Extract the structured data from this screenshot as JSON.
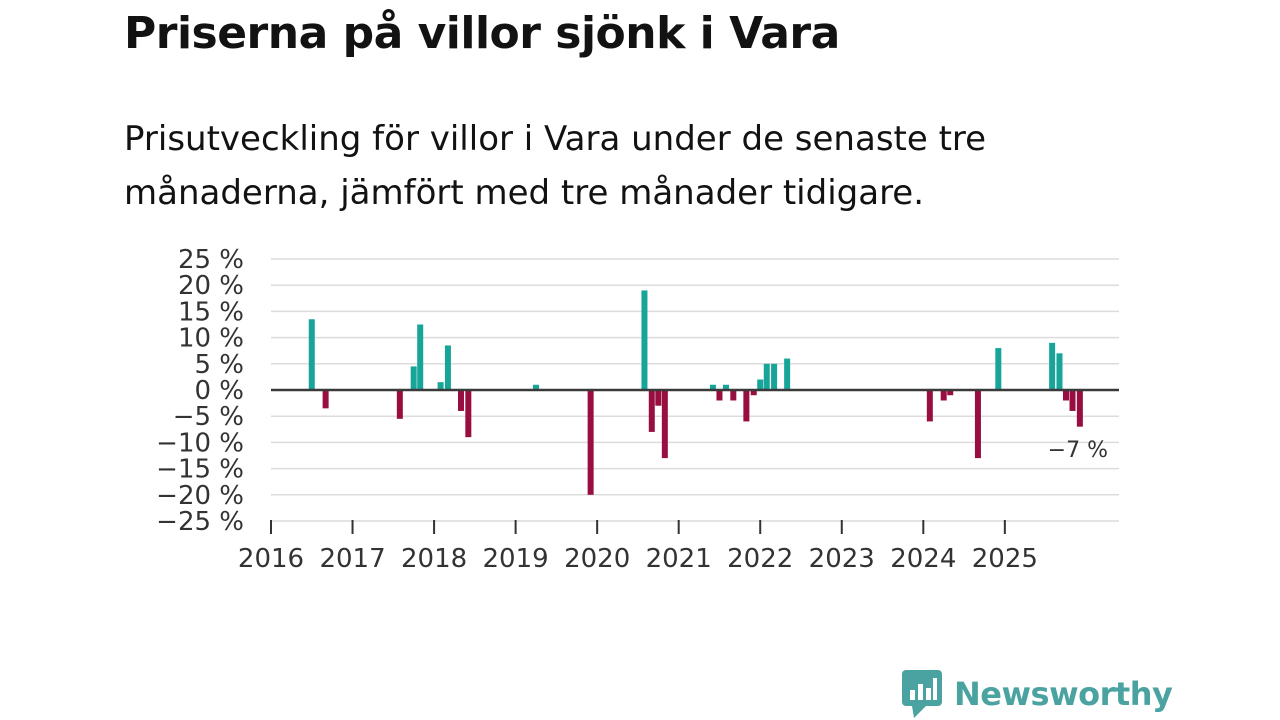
{
  "title": "Priserna på villor sjönk i Vara",
  "subtitle": "Prisutveckling för villor i Vara under de senaste tre månaderna, jämfört med tre månader tidigare.",
  "brand": {
    "name": "Newsworthy"
  },
  "colors": {
    "positive": "#16a598",
    "negative": "#980e40",
    "grid": "#dcdcdc",
    "brand": "#4aa3a0"
  },
  "chart_data": {
    "type": "bar",
    "title": "Priserna på villor sjönk i Vara",
    "xlabel": "",
    "ylabel": "",
    "ylim": [
      -25,
      25
    ],
    "y_ticks": [
      25,
      20,
      15,
      10,
      5,
      0,
      -5,
      -10,
      -15,
      -20,
      -25
    ],
    "y_tick_labels": [
      "25 %",
      "20 %",
      "15 %",
      "10 %",
      "5 %",
      "0 %",
      "−5 %",
      "−10 %",
      "−15 %",
      "−20 %",
      "−25 %"
    ],
    "x_range": [
      2016.0,
      2026.4
    ],
    "x_ticks": [
      2016,
      2017,
      2018,
      2019,
      2020,
      2021,
      2022,
      2023,
      2024,
      2025
    ],
    "x_tick_labels": [
      "2016",
      "2017",
      "2018",
      "2019",
      "2020",
      "2021",
      "2022",
      "2023",
      "2024",
      "2025"
    ],
    "annotation": {
      "text": "−7 %",
      "x": 2025.92,
      "value": -7
    },
    "series": [
      {
        "name": "Prisutveckling",
        "points": [
          {
            "x": 2016.5,
            "value": 13.5
          },
          {
            "x": 2016.67,
            "value": -3.5
          },
          {
            "x": 2017.58,
            "value": -5.5
          },
          {
            "x": 2017.75,
            "value": 4.5
          },
          {
            "x": 2017.83,
            "value": 12.5
          },
          {
            "x": 2018.08,
            "value": 1.5
          },
          {
            "x": 2018.17,
            "value": 8.5
          },
          {
            "x": 2018.33,
            "value": -4
          },
          {
            "x": 2018.42,
            "value": -9
          },
          {
            "x": 2019.25,
            "value": 1
          },
          {
            "x": 2019.92,
            "value": -20
          },
          {
            "x": 2020.58,
            "value": 19
          },
          {
            "x": 2020.67,
            "value": -8
          },
          {
            "x": 2020.75,
            "value": -3
          },
          {
            "x": 2020.83,
            "value": -13
          },
          {
            "x": 2021.42,
            "value": 1
          },
          {
            "x": 2021.5,
            "value": -2
          },
          {
            "x": 2021.58,
            "value": 1
          },
          {
            "x": 2021.67,
            "value": -2
          },
          {
            "x": 2021.83,
            "value": -6
          },
          {
            "x": 2021.92,
            "value": -1
          },
          {
            "x": 2022.0,
            "value": 2
          },
          {
            "x": 2022.08,
            "value": 5
          },
          {
            "x": 2022.17,
            "value": 5
          },
          {
            "x": 2022.33,
            "value": 6
          },
          {
            "x": 2024.08,
            "value": -6
          },
          {
            "x": 2024.25,
            "value": -2
          },
          {
            "x": 2024.33,
            "value": -1
          },
          {
            "x": 2024.67,
            "value": -13
          },
          {
            "x": 2024.92,
            "value": 8
          },
          {
            "x": 2025.58,
            "value": 9
          },
          {
            "x": 2025.67,
            "value": 7
          },
          {
            "x": 2025.75,
            "value": -2
          },
          {
            "x": 2025.83,
            "value": -4
          },
          {
            "x": 2025.92,
            "value": -7
          }
        ]
      }
    ]
  }
}
